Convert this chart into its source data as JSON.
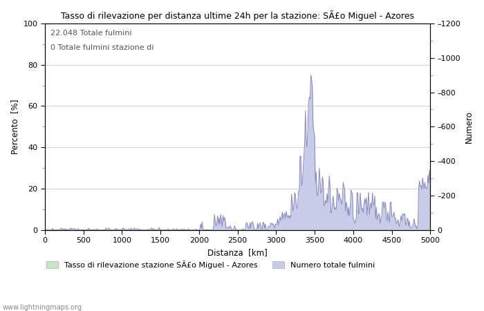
{
  "title": "Tasso di rilevazione per distanza ultime 24h per la stazione: SÃ£o Miguel - Azores",
  "xlabel": "Distanza  [km]",
  "ylabel_left": "Percento  [%]",
  "ylabel_right": "Numero",
  "annotation_line1": "22.048 Totale fulmini",
  "annotation_line2": "0 Totale fulmini stazione di",
  "legend_label1": "Tasso di rilevazione stazione SÃ£o Miguel - Azores",
  "legend_label2": "Numero totale fulmini",
  "watermark": "www.lightningmaps.org",
  "xlim": [
    0,
    5000
  ],
  "ylim_left": [
    0,
    100
  ],
  "ylim_right": [
    0,
    1200
  ],
  "yticks_left": [
    0,
    20,
    40,
    60,
    80,
    100
  ],
  "yticks_right": [
    0,
    200,
    400,
    600,
    800,
    1000,
    1200
  ],
  "xticks": [
    0,
    500,
    1000,
    1500,
    2000,
    2500,
    3000,
    3500,
    4000,
    4500,
    5000
  ],
  "fill_color": "#c8cce8",
  "line_color": "#8888bb",
  "green_fill_color": "#c8e6c8",
  "background_color": "#ffffff",
  "grid_color": "#cccccc",
  "minor_tick_color": "#888888"
}
